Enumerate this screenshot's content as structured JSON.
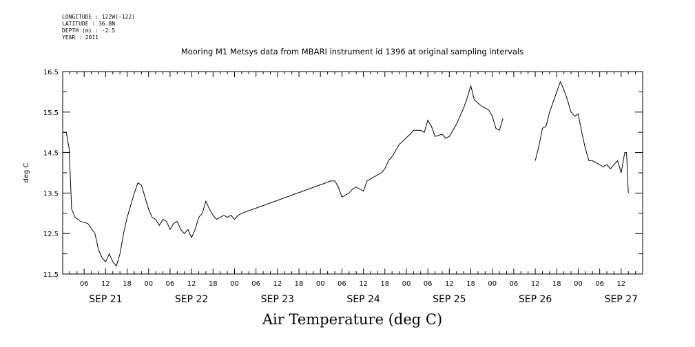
{
  "meta": {
    "longitude": "LONGITUDE : 122W(-122)",
    "latitude": "LATITUDE : 36.8N",
    "depth": "DEPTH (m) : -2.5",
    "year": "YEAR : 2011"
  },
  "chart_data": {
    "type": "line",
    "title": "Mooring M1 Metsys data from MBARI instrument id 1396 at original sampling intervals",
    "xlabel": "Air Temperature (deg C)",
    "ylabel": "deg C",
    "ylim": [
      11.5,
      16.5
    ],
    "yticks": [
      11.5,
      12.5,
      13.5,
      14.5,
      15.5,
      16.5
    ],
    "xlim_hours": [
      0,
      162
    ],
    "x_tick_labels": [
      "06",
      "12",
      "18",
      "00",
      "06",
      "12",
      "18",
      "00",
      "06",
      "12",
      "18",
      "00",
      "06",
      "12",
      "18",
      "00",
      "06",
      "12",
      "18",
      "00",
      "06",
      "12",
      "18",
      "00",
      "06",
      "12"
    ],
    "date_labels": [
      "SEP 21",
      "SEP 22",
      "SEP 23",
      "SEP 24",
      "SEP 25",
      "SEP 26",
      "SEP 27"
    ],
    "series": [
      {
        "segments": [
          [
            [
              0,
              15.0
            ],
            [
              1,
              15.0
            ],
            [
              1.8,
              14.6
            ],
            [
              2.5,
              13.1
            ],
            [
              3.5,
              12.9
            ],
            [
              5,
              12.8
            ],
            [
              7,
              12.75
            ],
            [
              9,
              12.5
            ],
            [
              10,
              12.1
            ],
            [
              11,
              11.9
            ],
            [
              12,
              11.8
            ],
            [
              13,
              12.0
            ],
            [
              14,
              11.8
            ],
            [
              15,
              11.7
            ],
            [
              16,
              12.0
            ],
            [
              17,
              12.5
            ],
            [
              18,
              12.9
            ],
            [
              19,
              13.2
            ],
            [
              20,
              13.5
            ],
            [
              21,
              13.75
            ],
            [
              22,
              13.7
            ],
            [
              23,
              13.4
            ],
            [
              24,
              13.1
            ],
            [
              25,
              12.9
            ],
            [
              26,
              12.85
            ],
            [
              27,
              12.7
            ],
            [
              28,
              12.85
            ],
            [
              29,
              12.8
            ],
            [
              30,
              12.6
            ],
            [
              31,
              12.75
            ],
            [
              32,
              12.8
            ],
            [
              33,
              12.6
            ],
            [
              34,
              12.5
            ],
            [
              35,
              12.6
            ],
            [
              36,
              12.4
            ],
            [
              37,
              12.6
            ],
            [
              38,
              12.9
            ],
            [
              39,
              13.0
            ],
            [
              40,
              13.3
            ],
            [
              41,
              13.1
            ],
            [
              42,
              12.95
            ],
            [
              43,
              12.85
            ],
            [
              44,
              12.9
            ],
            [
              45,
              12.95
            ],
            [
              46,
              12.9
            ],
            [
              47,
              12.95
            ],
            [
              48,
              12.85
            ],
            [
              49,
              12.95
            ],
            [
              50,
              13.0
            ],
            [
              75,
              13.8
            ],
            [
              76,
              13.8
            ],
            [
              77,
              13.65
            ],
            [
              78,
              13.4
            ],
            [
              79,
              13.45
            ],
            [
              80,
              13.5
            ],
            [
              81,
              13.6
            ],
            [
              82,
              13.65
            ],
            [
              83,
              13.6
            ],
            [
              84,
              13.55
            ],
            [
              85,
              13.8
            ],
            [
              87,
              13.9
            ],
            [
              89,
              14.0
            ],
            [
              90,
              14.1
            ],
            [
              91,
              14.3
            ],
            [
              92,
              14.4
            ],
            [
              94,
              14.7
            ],
            [
              97,
              14.95
            ],
            [
              98,
              15.05
            ],
            [
              100,
              15.05
            ],
            [
              101,
              15.0
            ],
            [
              102,
              15.3
            ],
            [
              103,
              15.15
            ],
            [
              104,
              14.9
            ],
            [
              106,
              14.95
            ],
            [
              107,
              14.85
            ],
            [
              108,
              14.9
            ],
            [
              109,
              15.05
            ],
            [
              110,
              15.2
            ],
            [
              112,
              15.6
            ],
            [
              113,
              15.85
            ],
            [
              114,
              16.15
            ],
            [
              115,
              15.8
            ],
            [
              117,
              15.65
            ],
            [
              119,
              15.55
            ],
            [
              120,
              15.4
            ],
            [
              121,
              15.1
            ],
            [
              122,
              15.05
            ],
            [
              123,
              15.35
            ]
          ],
          [
            [
              132,
              14.3
            ],
            [
              133,
              14.65
            ],
            [
              134,
              15.1
            ],
            [
              135,
              15.15
            ],
            [
              136,
              15.5
            ],
            [
              137,
              15.75
            ],
            [
              138,
              16.0
            ],
            [
              139,
              16.25
            ],
            [
              140,
              16.05
            ],
            [
              141,
              15.8
            ],
            [
              142,
              15.5
            ],
            [
              143,
              15.4
            ],
            [
              144,
              15.45
            ],
            [
              145,
              15.0
            ],
            [
              146,
              14.6
            ],
            [
              147,
              14.3
            ],
            [
              148,
              14.3
            ],
            [
              150,
              14.2
            ],
            [
              151,
              14.15
            ],
            [
              152,
              14.2
            ],
            [
              153,
              14.1
            ],
            [
              154,
              14.2
            ],
            [
              155,
              14.3
            ],
            [
              156,
              14.0
            ],
            [
              157,
              14.5
            ],
            [
              157.5,
              14.5
            ],
            [
              158,
              13.5
            ]
          ]
        ]
      }
    ]
  }
}
